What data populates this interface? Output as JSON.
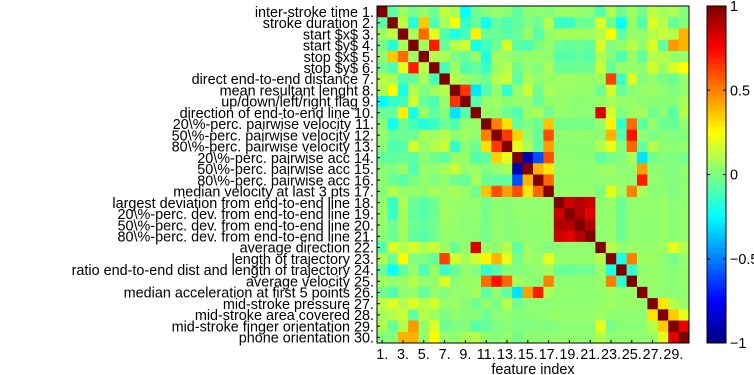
{
  "chart_data": {
    "type": "heatmap",
    "title": "",
    "xlabel": "feature index",
    "ylabel": "",
    "row_labels": [
      "inter-stroke time 1.",
      "stroke duration 2.",
      "start $x$ 3.",
      "start $y$ 4.",
      "stop $x$ 5.",
      "stop $y$ 6.",
      "direct end-to-end distance 7.",
      "mean resultant lenght 8.",
      "up/down/left/right flag 9.",
      "direction of end-to-end line 10.",
      "20\\%-perc. pairwise velocity 11.",
      "50\\%-perc. pairwise velocity 12.",
      "80\\%-perc. pairwise velocity 13.",
      "20\\%-perc. pairwise acc 14.",
      "50\\%-perc. pairwise acc 15.",
      "80\\%-perc. pairwise acc 16.",
      "median velocity at last 3 pts 17.",
      "largest deviation from end-to-end line 18.",
      "20\\%-perc. dev. from end-to-end line 19.",
      "50\\%-perc. dev. from end-to-end line 20.",
      "80\\%-perc. dev. from end-to-end line 21.",
      "average direction 22.",
      "length of trajectory 23.",
      "ratio end-to-end dist and length of trajectory 24.",
      "average velocity 25.",
      "median acceleration at first 5 points 26.",
      "mid-stroke pressure 27.",
      "mid-stroke area covered 28.",
      "mid-stroke finger orientation 29.",
      "phone orientation 30."
    ],
    "x_ticks": [
      "1.",
      "3.",
      "5.",
      "7.",
      "9.",
      "11.",
      "13.",
      "15.",
      "17.",
      "19.",
      "21.",
      "23.",
      "25.",
      "27.",
      "29."
    ],
    "x_tick_index": [
      1,
      3,
      5,
      7,
      9,
      11,
      13,
      15,
      17,
      19,
      21,
      23,
      25,
      27,
      29
    ],
    "colorbar": {
      "min": -1,
      "max": 1,
      "ticks": [
        1,
        0.5,
        0,
        -0.5,
        -1
      ],
      "tick_labels": [
        "1",
        "0.5",
        "0",
        "−0.5",
        "−1"
      ]
    },
    "n": 30,
    "values": [
      [
        1.0,
        -0.07,
        0.06,
        -0.02,
        0.04,
        -0.03,
        0.12,
        0.08,
        -0.25,
        -0.04,
        0.02,
        0.04,
        0.02,
        -0.06,
        0.02,
        0.03,
        0.01,
        0.05,
        0.05,
        0.04,
        0.02,
        -0.09,
        0.09,
        -0.04,
        0.06,
        -0.02,
        0.12,
        0.07,
        0.09,
        0.01
      ],
      [
        -0.07,
        1.0,
        0.12,
        -0.18,
        0.36,
        -0.1,
        0.08,
        0.24,
        -0.15,
        -0.05,
        -0.22,
        -0.05,
        -0.1,
        -0.06,
        0.0,
        -0.04,
        0.1,
        -0.14,
        -0.14,
        -0.04,
        -0.04,
        0.18,
        -0.04,
        -0.24,
        0.04,
        -0.09,
        0.18,
        0.1,
        -0.05,
        0.01
      ],
      [
        0.06,
        0.12,
        1.0,
        0.08,
        0.54,
        0.2,
        -0.09,
        -0.2,
        -0.12,
        0.28,
        -0.04,
        -0.04,
        -0.08,
        -0.05,
        0.05,
        -0.08,
        0.04,
        0.08,
        0.07,
        0.07,
        0.06,
        0.1,
        0.25,
        -0.07,
        0.05,
        0.03,
        0.1,
        0.14,
        0.1,
        0.4
      ],
      [
        -0.02,
        -0.18,
        0.08,
        1.0,
        0.06,
        0.7,
        -0.05,
        0.1,
        0.16,
        -0.21,
        -0.12,
        -0.04,
        0.17,
        -0.07,
        -0.1,
        -0.01,
        0.04,
        -0.04,
        -0.06,
        -0.04,
        -0.06,
        0.17,
        0.0,
        0.04,
        0.1,
        0.04,
        0.18,
        -0.06,
        0.45,
        0.4
      ],
      [
        0.04,
        0.36,
        0.54,
        0.06,
        1.0,
        0.1,
        0.08,
        0.0,
        -0.05,
        0.05,
        -0.19,
        0.08,
        0.04,
        0.02,
        0.04,
        0.04,
        0.03,
        -0.08,
        -0.08,
        -0.06,
        -0.08,
        0.1,
        0.0,
        -0.1,
        0.04,
        -0.06,
        0.1,
        0.1,
        0.04,
        0.04
      ],
      [
        -0.03,
        -0.1,
        0.2,
        0.7,
        0.1,
        1.0,
        -0.11,
        0.06,
        -0.1,
        -0.06,
        -0.14,
        0.06,
        0.1,
        -0.03,
        0.03,
        0.0,
        0.08,
        -0.04,
        -0.04,
        -0.03,
        -0.03,
        0.14,
        -0.05,
        0.05,
        0.04,
        0.03,
        0.16,
        0.06,
        0.18,
        0.25
      ],
      [
        0.12,
        0.08,
        -0.09,
        -0.05,
        0.08,
        -0.11,
        1.0,
        0.1,
        0.05,
        0.01,
        -0.04,
        0.1,
        0.14,
        -0.07,
        0.08,
        0.03,
        0.05,
        0.06,
        0.06,
        0.05,
        0.04,
        0.06,
        0.62,
        -0.14,
        0.18,
        0.01,
        0.04,
        -0.01,
        -0.04,
        0.04
      ],
      [
        0.08,
        0.24,
        -0.2,
        0.1,
        0.0,
        0.06,
        0.1,
        1.0,
        0.65,
        -0.3,
        -0.09,
        0.03,
        -0.15,
        0.04,
        0.14,
        -0.03,
        0.08,
        0.05,
        0.05,
        0.04,
        0.04,
        -0.04,
        0.16,
        -0.05,
        0.02,
        0.04,
        0.05,
        0.03,
        0.0,
        0.03
      ],
      [
        -0.25,
        -0.15,
        -0.12,
        0.16,
        -0.05,
        -0.1,
        0.05,
        0.65,
        1.0,
        -0.08,
        0.04,
        0.06,
        0.02,
        0.04,
        0.04,
        -0.05,
        0.04,
        0.04,
        0.03,
        0.02,
        0.03,
        0.04,
        0.08,
        0.04,
        0.05,
        0.03,
        0.02,
        0.02,
        0.01,
        0.08
      ],
      [
        -0.04,
        -0.05,
        0.28,
        -0.21,
        0.05,
        -0.06,
        0.01,
        -0.3,
        -0.08,
        1.0,
        0.05,
        0.03,
        -0.04,
        -0.09,
        0.05,
        0.08,
        -0.03,
        0.04,
        0.03,
        0.03,
        0.02,
        0.82,
        0.16,
        0.0,
        0.05,
        0.07,
        -0.03,
        0.02,
        -0.08,
        0.1
      ],
      [
        0.02,
        -0.22,
        -0.04,
        -0.12,
        -0.19,
        -0.14,
        -0.04,
        -0.09,
        0.04,
        0.05,
        1.0,
        0.5,
        0.31,
        -0.06,
        0.0,
        -0.04,
        0.37,
        -0.02,
        -0.02,
        -0.01,
        -0.02,
        0.04,
        0.27,
        -0.15,
        0.54,
        -0.07,
        0.04,
        -0.04,
        -0.05,
        0.03
      ],
      [
        0.04,
        -0.05,
        -0.04,
        -0.04,
        0.08,
        0.06,
        0.1,
        0.03,
        0.06,
        0.03,
        0.5,
        1.0,
        0.64,
        0.34,
        0.04,
        -0.05,
        0.6,
        0.03,
        0.03,
        0.03,
        0.03,
        0.03,
        0.4,
        -0.09,
        0.72,
        0.03,
        -0.01,
        0.02,
        0.0,
        0.01
      ],
      [
        0.02,
        -0.1,
        -0.08,
        0.17,
        0.04,
        0.1,
        0.14,
        -0.15,
        0.02,
        -0.04,
        0.31,
        0.64,
        1.0,
        0.2,
        0.08,
        -0.06,
        0.44,
        0.02,
        0.02,
        0.02,
        0.02,
        0.1,
        0.2,
        0.01,
        0.55,
        -0.06,
        0.1,
        0.03,
        0.02,
        0.04
      ],
      [
        -0.06,
        -0.06,
        -0.05,
        -0.07,
        0.02,
        -0.03,
        -0.07,
        0.04,
        0.04,
        -0.09,
        -0.06,
        0.34,
        0.2,
        1.0,
        -0.9,
        -0.6,
        0.6,
        0.03,
        0.03,
        0.02,
        0.02,
        -0.07,
        -0.02,
        0.0,
        0.08,
        -0.3,
        -0.03,
        0.01,
        0.0,
        -0.02
      ],
      [
        0.02,
        0.0,
        0.05,
        -0.1,
        0.04,
        0.03,
        0.08,
        0.14,
        0.04,
        0.05,
        0.0,
        0.04,
        0.08,
        -0.9,
        1.0,
        0.4,
        0.3,
        0.04,
        0.04,
        0.03,
        0.03,
        0.05,
        0.06,
        0.02,
        0.03,
        0.44,
        0.02,
        0.02,
        0.0,
        0.03
      ],
      [
        0.03,
        -0.04,
        -0.08,
        -0.01,
        0.04,
        0.0,
        0.03,
        -0.03,
        -0.05,
        0.08,
        -0.04,
        -0.05,
        -0.06,
        -0.6,
        0.4,
        1.0,
        0.55,
        0.03,
        0.03,
        0.03,
        0.03,
        0.03,
        0.04,
        0.04,
        0.02,
        0.7,
        0.03,
        0.02,
        0.01,
        0.02
      ],
      [
        0.01,
        0.1,
        0.04,
        0.04,
        0.03,
        0.08,
        0.05,
        0.08,
        0.04,
        -0.03,
        0.37,
        0.6,
        0.44,
        0.6,
        0.3,
        0.55,
        1.0,
        0.04,
        0.04,
        0.04,
        0.04,
        0.0,
        0.2,
        0.06,
        0.5,
        0.08,
        0.02,
        0.03,
        0.0,
        0.03
      ],
      [
        0.05,
        -0.14,
        0.08,
        -0.04,
        -0.08,
        -0.04,
        0.06,
        0.05,
        0.04,
        0.04,
        -0.02,
        0.03,
        0.02,
        0.03,
        0.04,
        0.03,
        0.04,
        1.0,
        0.85,
        0.9,
        0.85,
        0.03,
        0.04,
        -0.04,
        0.03,
        0.04,
        0.03,
        0.04,
        0.02,
        0.03
      ],
      [
        0.05,
        -0.14,
        0.07,
        -0.06,
        -0.08,
        -0.04,
        0.06,
        0.05,
        0.03,
        0.03,
        -0.02,
        0.03,
        0.02,
        0.03,
        0.04,
        0.03,
        0.04,
        0.85,
        1.0,
        0.9,
        0.8,
        0.03,
        0.04,
        -0.04,
        0.03,
        0.04,
        0.03,
        0.04,
        0.02,
        0.03
      ],
      [
        0.04,
        -0.04,
        0.07,
        -0.04,
        -0.06,
        -0.03,
        0.05,
        0.04,
        0.02,
        0.03,
        -0.01,
        0.03,
        0.02,
        0.02,
        0.03,
        0.03,
        0.04,
        0.9,
        0.9,
        1.0,
        0.9,
        0.03,
        0.04,
        -0.03,
        0.03,
        0.03,
        0.03,
        0.04,
        0.02,
        0.03
      ],
      [
        0.02,
        -0.04,
        0.06,
        -0.06,
        -0.08,
        -0.03,
        0.04,
        0.04,
        0.03,
        0.02,
        -0.02,
        0.03,
        0.02,
        0.02,
        0.03,
        0.03,
        0.04,
        0.85,
        0.8,
        0.9,
        1.0,
        0.03,
        0.04,
        -0.03,
        0.03,
        0.03,
        0.03,
        0.04,
        0.02,
        0.03
      ],
      [
        -0.09,
        0.18,
        0.1,
        0.17,
        0.1,
        0.14,
        0.06,
        -0.04,
        0.04,
        0.82,
        0.04,
        0.03,
        0.1,
        -0.07,
        0.05,
        0.03,
        0.0,
        0.03,
        0.03,
        0.03,
        0.03,
        1.0,
        0.1,
        0.04,
        0.05,
        0.04,
        0.04,
        0.06,
        0.2,
        0.1
      ],
      [
        0.09,
        -0.04,
        0.25,
        0.0,
        0.0,
        -0.05,
        0.62,
        0.16,
        0.08,
        0.16,
        0.27,
        0.4,
        0.2,
        -0.02,
        0.06,
        0.04,
        0.2,
        0.04,
        0.04,
        0.04,
        0.04,
        0.1,
        1.0,
        -0.2,
        0.5,
        0.06,
        0.06,
        0.03,
        -0.02,
        0.03
      ],
      [
        -0.04,
        -0.24,
        -0.07,
        0.04,
        -0.1,
        0.05,
        -0.14,
        -0.05,
        0.04,
        0.0,
        -0.15,
        -0.09,
        0.01,
        0.0,
        0.02,
        0.04,
        0.06,
        -0.04,
        -0.04,
        -0.03,
        -0.03,
        0.04,
        -0.2,
        1.0,
        -0.15,
        0.03,
        0.04,
        0.03,
        0.02,
        0.03
      ],
      [
        0.06,
        0.04,
        0.05,
        0.1,
        0.04,
        0.04,
        0.18,
        0.02,
        0.05,
        0.05,
        0.54,
        0.72,
        0.55,
        0.08,
        0.03,
        0.02,
        0.5,
        0.03,
        0.03,
        0.03,
        0.03,
        0.05,
        0.5,
        -0.15,
        1.0,
        0.04,
        0.05,
        0.03,
        0.02,
        0.03
      ],
      [
        -0.02,
        -0.09,
        0.03,
        0.04,
        -0.06,
        0.03,
        0.01,
        0.04,
        0.03,
        0.07,
        -0.07,
        0.03,
        -0.06,
        -0.3,
        0.44,
        0.7,
        0.08,
        0.04,
        0.04,
        0.03,
        0.03,
        0.04,
        0.06,
        0.03,
        0.04,
        1.0,
        0.04,
        0.03,
        0.02,
        0.03
      ],
      [
        0.12,
        0.18,
        0.1,
        0.18,
        0.1,
        0.16,
        0.04,
        0.05,
        0.02,
        -0.03,
        0.04,
        -0.01,
        0.1,
        -0.03,
        0.02,
        0.03,
        0.02,
        0.03,
        0.03,
        0.03,
        0.03,
        0.04,
        0.06,
        0.04,
        0.05,
        0.04,
        1.0,
        0.3,
        0.1,
        0.05
      ],
      [
        0.07,
        0.1,
        0.14,
        -0.06,
        0.1,
        0.06,
        -0.01,
        0.03,
        0.02,
        0.02,
        -0.04,
        0.02,
        0.03,
        0.01,
        0.02,
        0.02,
        0.03,
        0.04,
        0.04,
        0.04,
        0.04,
        0.06,
        0.03,
        0.03,
        0.03,
        0.03,
        0.3,
        1.0,
        0.35,
        0.2
      ],
      [
        0.09,
        -0.05,
        0.1,
        0.45,
        0.04,
        0.18,
        -0.04,
        0.0,
        0.01,
        -0.08,
        -0.05,
        0.0,
        0.02,
        0.0,
        0.0,
        0.01,
        0.0,
        0.02,
        0.02,
        0.02,
        0.02,
        0.2,
        -0.02,
        0.02,
        0.02,
        0.02,
        0.1,
        0.35,
        1.0,
        0.8
      ],
      [
        0.01,
        0.01,
        0.4,
        0.4,
        0.04,
        0.25,
        0.04,
        0.03,
        0.08,
        0.1,
        0.03,
        0.01,
        0.04,
        -0.02,
        0.03,
        0.02,
        0.03,
        0.03,
        0.03,
        0.03,
        0.03,
        0.1,
        0.03,
        0.03,
        0.03,
        0.03,
        0.05,
        0.2,
        0.8,
        1.0
      ]
    ]
  }
}
